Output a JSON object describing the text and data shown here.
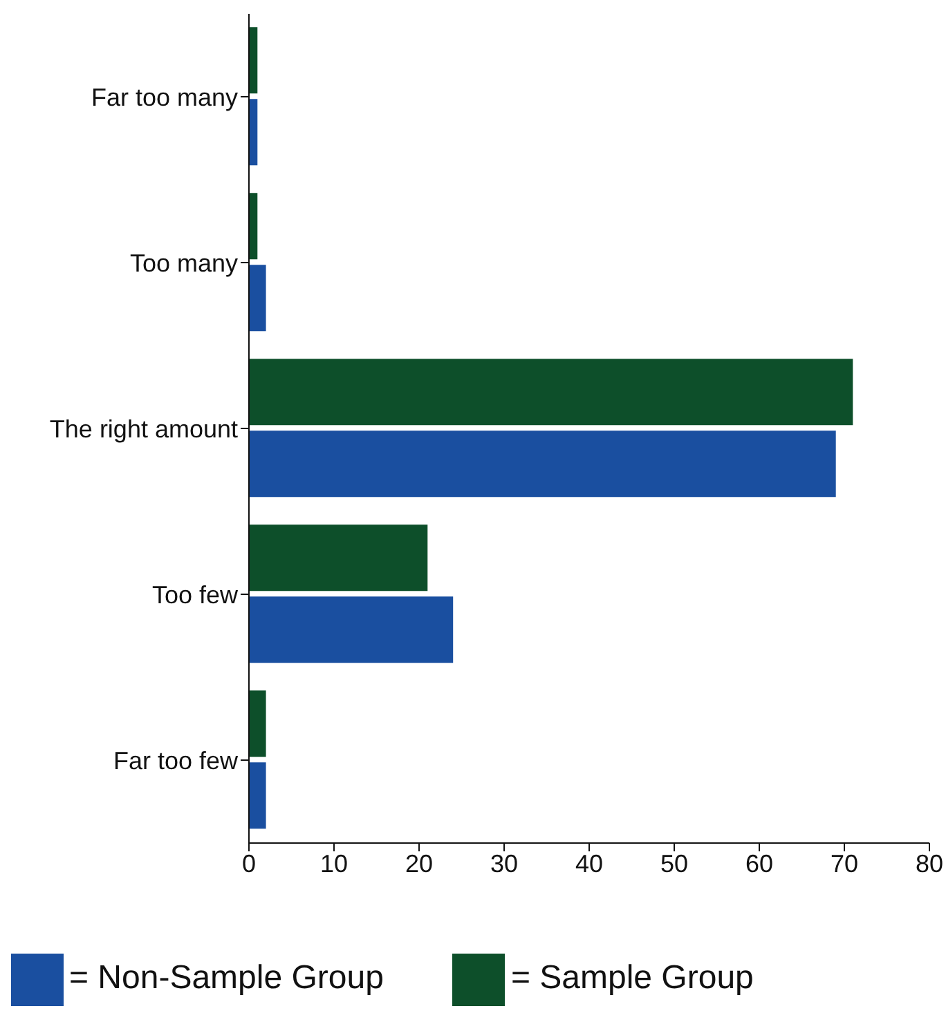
{
  "chart_data": {
    "type": "bar",
    "orientation": "horizontal",
    "categories": [
      "Far too many",
      "Too many",
      "The right amount",
      "Too few",
      "Far too few"
    ],
    "series": [
      {
        "name": "= Sample Group",
        "color": "#0d4f2a",
        "values": [
          1,
          1,
          71,
          21,
          2
        ]
      },
      {
        "name": "= Non-Sample Group",
        "color": "#1a4fa0",
        "values": [
          1,
          2,
          69,
          24,
          2
        ]
      }
    ],
    "xlim": [
      0,
      80
    ],
    "xticks": [
      0,
      10,
      20,
      30,
      40,
      50,
      60,
      70,
      80
    ],
    "grid": false,
    "legend": "bottom left"
  }
}
